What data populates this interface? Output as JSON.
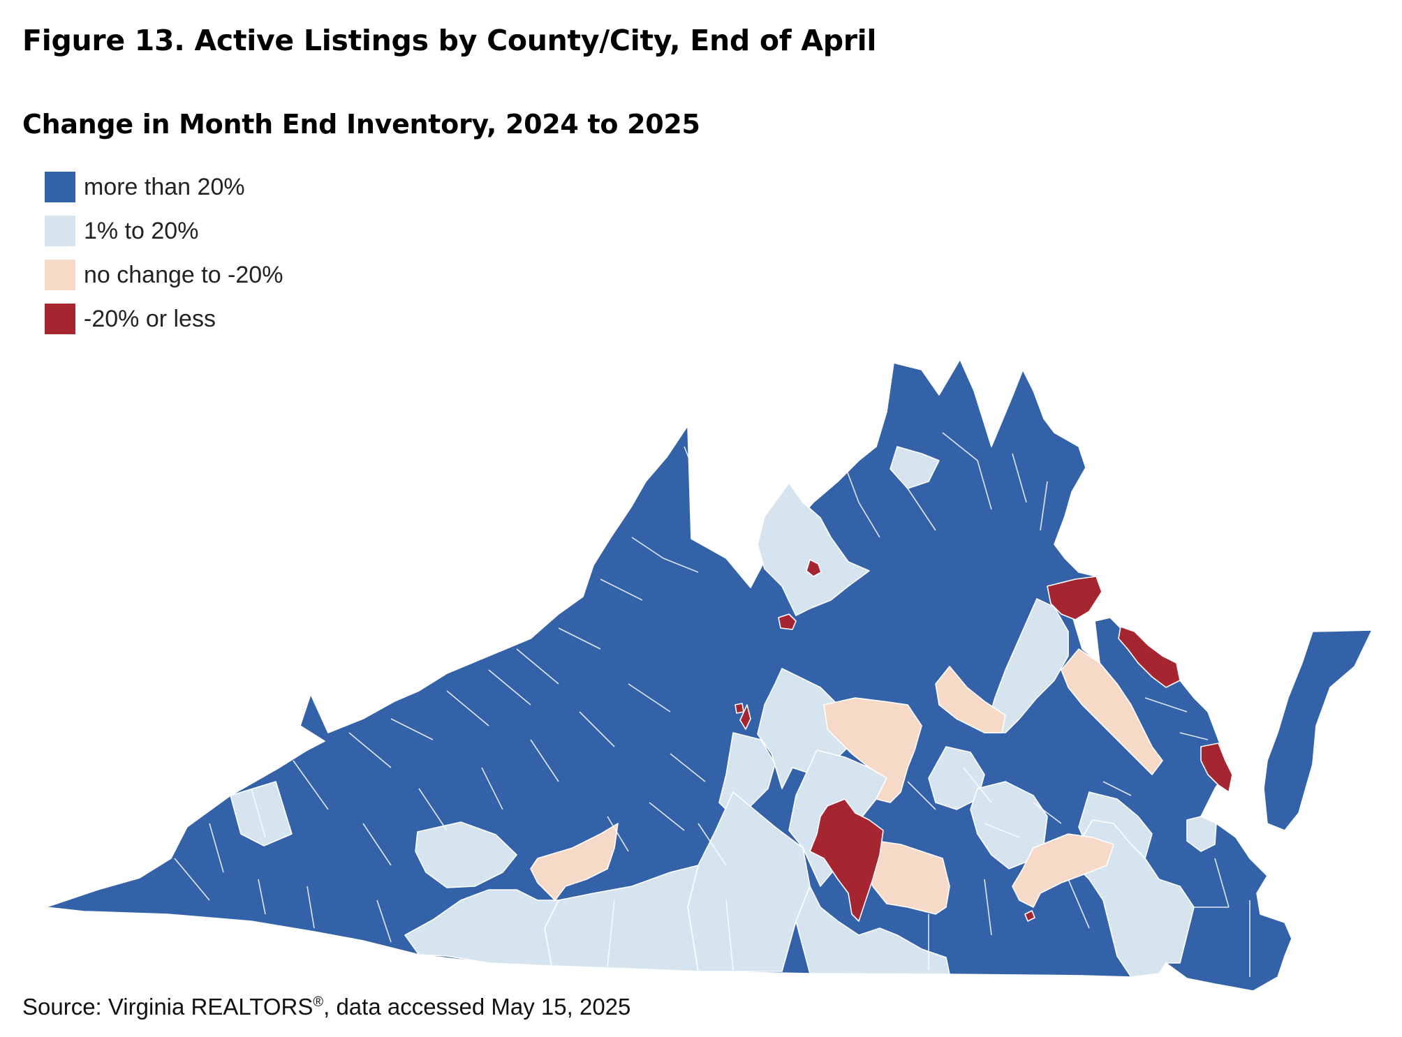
{
  "figure": {
    "title": "Figure 13. Active Listings by County/City, End of April",
    "subtitle": "Change in Month End Inventory, 2024 to 2025",
    "source_prefix": "Source: Virginia REALTORS",
    "source_suffix": ", data accessed May 15, 2025",
    "registered_mark": "®"
  },
  "legend": [
    {
      "label": "more than 20%",
      "color": "#3462a8"
    },
    {
      "label": "1% to 20%",
      "color": "#d6e4ef"
    },
    {
      "label": "no change to -20%",
      "color": "#f7d9c8"
    },
    {
      "label": "-20% or less",
      "color": "#a52530"
    }
  ],
  "map": {
    "state": "Virginia",
    "geography": "county/city",
    "categories": [
      "more than 20%",
      "1% to 20%",
      "no change to -20%",
      "-20% or less"
    ]
  }
}
